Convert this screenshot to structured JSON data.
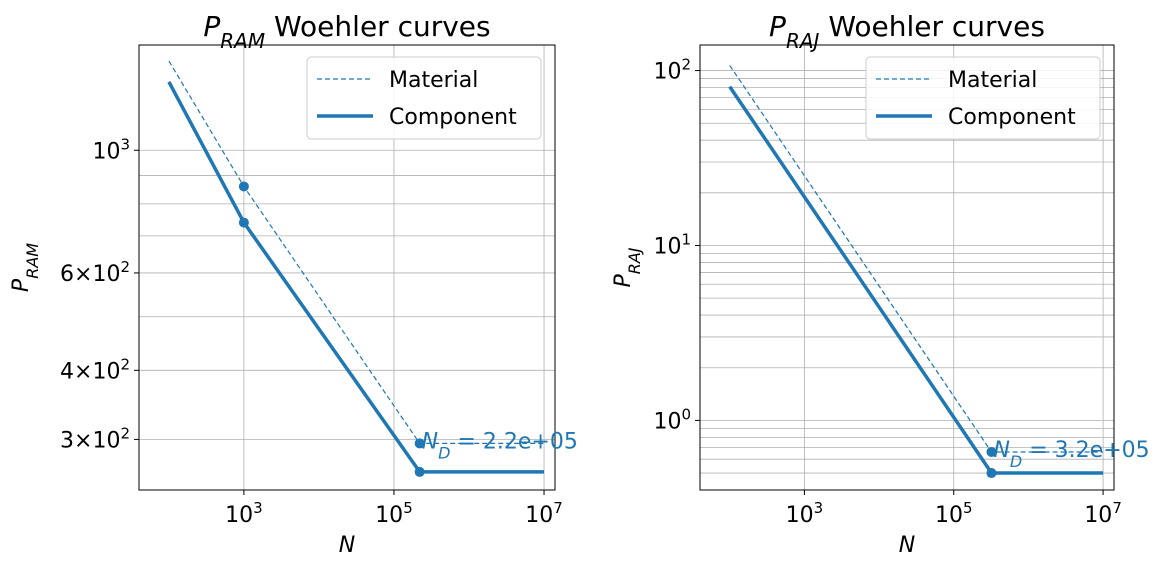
{
  "chart_data": [
    {
      "type": "line",
      "title_base": "P",
      "title_sub": "RAM",
      "title_rest": " Woehler curves",
      "xlabel": "N",
      "ylabel_base": "P",
      "ylabel_sub": "RAM",
      "xscale": "log",
      "yscale": "log",
      "xlim": [
        40,
        14000000
      ],
      "ylim": [
        243,
        1550
      ],
      "grid": true,
      "legend_placement": "top-right",
      "x_ticks": [
        {
          "value": 1000,
          "base": "10",
          "exp": "3"
        },
        {
          "value": 100000,
          "base": "10",
          "exp": "5"
        },
        {
          "value": 10000000,
          "base": "10",
          "exp": "7"
        }
      ],
      "y_ticks": [
        {
          "value": 1000,
          "type": "pow",
          "base": "10",
          "exp": "3"
        },
        {
          "value": 600,
          "type": "mul",
          "mant": "6",
          "base": "10",
          "exp": "2"
        },
        {
          "value": 400,
          "type": "mul",
          "mant": "4",
          "base": "10",
          "exp": "2"
        },
        {
          "value": 300,
          "type": "mul",
          "mant": "3",
          "base": "10",
          "exp": "2"
        }
      ],
      "y_minor_grid": [
        300,
        400,
        500,
        600,
        700,
        800,
        900,
        1000
      ],
      "series": [
        {
          "name": "Material",
          "style": "dashed",
          "x": [
            100,
            1000,
            220000,
            10000000
          ],
          "y": [
            1450,
            860,
            295,
            295
          ],
          "markers": [
            1000,
            220000
          ]
        },
        {
          "name": "Component",
          "style": "solid",
          "x": [
            100,
            1000,
            220000,
            10000000
          ],
          "y": [
            1330,
            740,
            262,
            262
          ],
          "markers": [
            1000,
            220000
          ]
        }
      ],
      "annotation": {
        "base": "N",
        "sub": "D",
        "rest": " = 2.2e+05",
        "x": 220000,
        "y": 295
      }
    },
    {
      "type": "line",
      "title_base": "P",
      "title_sub": "RAJ",
      "title_rest": " Woehler curves",
      "xlabel": "N",
      "ylabel_base": "P",
      "ylabel_sub": "RAJ",
      "xscale": "log",
      "yscale": "log",
      "xlim": [
        40,
        14000000
      ],
      "ylim": [
        0.4,
        140
      ],
      "grid": true,
      "legend_placement": "top-right",
      "x_ticks": [
        {
          "value": 1000,
          "base": "10",
          "exp": "3"
        },
        {
          "value": 100000,
          "base": "10",
          "exp": "5"
        },
        {
          "value": 10000000,
          "base": "10",
          "exp": "7"
        }
      ],
      "y_ticks": [
        {
          "value": 100,
          "type": "pow",
          "base": "10",
          "exp": "2"
        },
        {
          "value": 10,
          "type": "pow",
          "base": "10",
          "exp": "1"
        },
        {
          "value": 1,
          "type": "pow",
          "base": "10",
          "exp": "0"
        }
      ],
      "y_minor_grid": [
        0.4,
        0.5,
        0.6,
        0.7,
        0.8,
        0.9,
        1,
        2,
        3,
        4,
        5,
        6,
        7,
        8,
        9,
        10,
        20,
        30,
        40,
        50,
        60,
        70,
        80,
        90,
        100
      ],
      "series": [
        {
          "name": "Material",
          "style": "dashed",
          "x": [
            100,
            320000,
            10000000
          ],
          "y": [
            107,
            0.66,
            0.66
          ],
          "markers": [
            320000
          ]
        },
        {
          "name": "Component",
          "style": "solid",
          "x": [
            100,
            320000,
            10000000
          ],
          "y": [
            81,
            0.5,
            0.5
          ],
          "markers": [
            320000
          ]
        }
      ],
      "annotation": {
        "base": "N",
        "sub": "D",
        "rest": " = 3.2e+05",
        "x": 320000,
        "y": 0.66
      }
    }
  ],
  "colors": {
    "series": "#1f77b4",
    "grid": "#b0b0b0",
    "axis": "#000000"
  }
}
